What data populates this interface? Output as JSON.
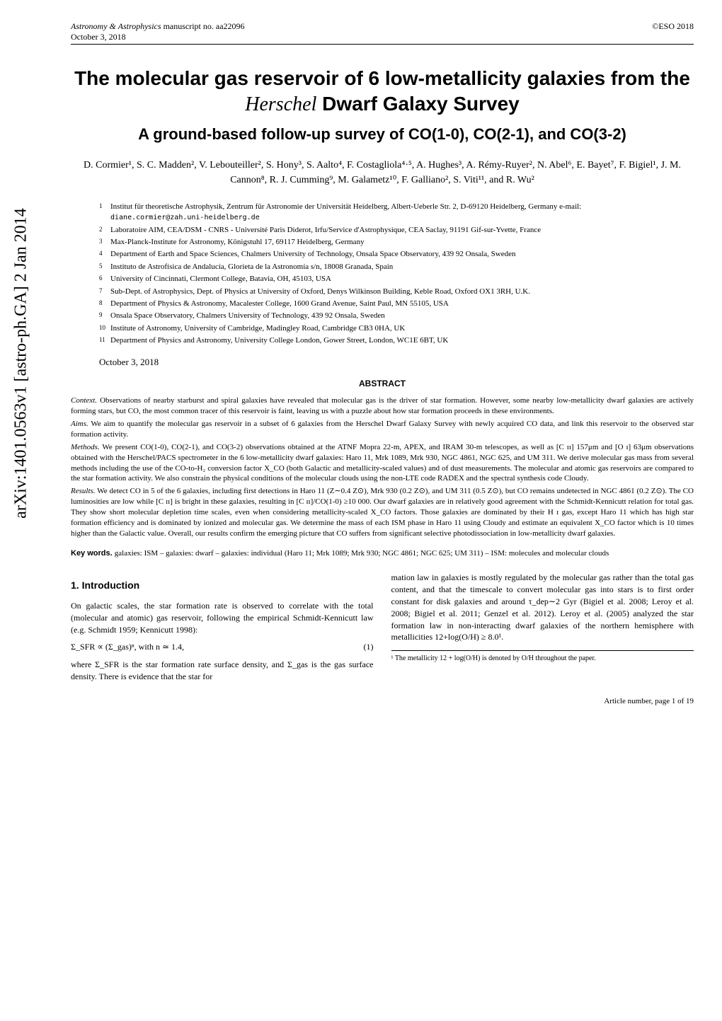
{
  "arxiv_id": "arXiv:1401.0563v1  [astro-ph.GA]  2 Jan 2014",
  "header": {
    "journal": "Astronomy & Astrophysics",
    "manuscript": " manuscript no. aa22096",
    "date": "October 3, 2018",
    "copyright": "©ESO 2018"
  },
  "title_line1": "The molecular gas reservoir of 6 low-metallicity galaxies from the",
  "title_herschel": "Herschel",
  "title_line2_rest": " Dwarf Galaxy Survey",
  "subtitle": "A ground-based follow-up survey of CO(1-0), CO(2-1), and CO(3-2)",
  "authors": "D. Cormier¹, S. C. Madden², V. Lebouteiller², S. Hony³, S. Aalto⁴, F. Costagliola⁴·⁵, A. Hughes³, A. Rémy-Ruyer², N. Abel⁶, E. Bayet⁷, F. Bigiel¹, J. M. Cannon⁸, R. J. Cumming⁹, M. Galametz¹⁰, F. Galliano², S. Viti¹¹, and R. Wu²",
  "affiliations": [
    "Institut für theoretische Astrophysik, Zentrum für Astronomie der Universität Heidelberg, Albert-Ueberle Str. 2, D-69120 Heidelberg, Germany e-mail: ",
    "Laboratoire AIM, CEA/DSM - CNRS - Université Paris Diderot, Irfu/Service d'Astrophysique, CEA Saclay, 91191 Gif-sur-Yvette, France",
    "Max-Planck-Institute for Astronomy, Königstuhl 17, 69117 Heidelberg, Germany",
    "Department of Earth and Space Sciences, Chalmers University of Technology, Onsala Space Observatory, 439 92 Onsala, Sweden",
    "Instituto de Astrofísica de Andalucía, Glorieta de la Astronomía s/n, 18008 Granada, Spain",
    "University of Cincinnati, Clermont College, Batavia, OH, 45103, USA",
    "Sub-Dept. of Astrophysics, Dept. of Physics at University of Oxford, Denys Wilkinson Building, Keble Road, Oxford OX1 3RH, U.K.",
    "Department of Physics & Astronomy, Macalester College, 1600 Grand Avenue, Saint Paul, MN 55105, USA",
    "Onsala Space Observatory, Chalmers University of Technology, 439 92 Onsala, Sweden",
    "Institute of Astronomy, University of Cambridge, Madingley Road, Cambridge CB3 0HA, UK",
    "Department of Physics and Astronomy, University College London, Gower Street, London, WC1E 6BT, UK"
  ],
  "email": "diane.cormier@zah.uni-heidelberg.de",
  "date_line": "October 3, 2018",
  "abstract_heading": "ABSTRACT",
  "abstract": {
    "context_label": "Context.",
    "context": " Observations of nearby starburst and spiral galaxies have revealed that molecular gas is the driver of star formation. However, some nearby low-metallicity dwarf galaxies are actively forming stars, but CO, the most common tracer of this reservoir is faint, leaving us with a puzzle about how star formation proceeds in these environments.",
    "aims_label": "Aims.",
    "aims": " We aim to quantify the molecular gas reservoir in a subset of 6 galaxies from the Herschel Dwarf Galaxy Survey with newly acquired CO data, and link this reservoir to the observed star formation activity.",
    "methods_label": "Methods.",
    "methods": " We present CO(1-0), CO(2-1), and CO(3-2) observations obtained at the ATNF Mopra 22-m, APEX, and IRAM 30-m telescopes, as well as [C ɪɪ] 157μm and [O ɪ] 63μm observations obtained with the Herschel/PACS spectrometer in the 6 low-metallicity dwarf galaxies: Haro 11, Mrk 1089, Mrk 930, NGC 4861, NGC 625, and UM 311. We derive molecular gas mass from several methods including the use of the CO-to-H₂ conversion factor X_CO (both Galactic and metallicity-scaled values) and of dust measurements. The molecular and atomic gas reservoirs are compared to the star formation activity. We also constrain the physical conditions of the molecular clouds using the non-LTE code RADEX and the spectral synthesis code Cloudy.",
    "results_label": "Results.",
    "results": " We detect CO in 5 of the 6 galaxies, including first detections in Haro 11 (Z∼0.4 Z⊙), Mrk 930 (0.2 Z⊙), and UM 311 (0.5 Z⊙), but CO remains undetected in NGC 4861 (0.2 Z⊙). The CO luminosities are low while [C ɪɪ] is bright in these galaxies, resulting in [C ɪɪ]/CO(1-0) ≥10 000. Our dwarf galaxies are in relatively good agreement with the Schmidt-Kennicutt relation for total gas. They show short molecular depletion time scales, even when considering metallicity-scaled X_CO factors. Those galaxies are dominated by their H ɪ gas, except Haro 11 which has high star formation efficiency and is dominated by ionized and molecular gas. We determine the mass of each ISM phase in Haro 11 using Cloudy and estimate an equivalent X_CO factor which is 10 times higher than the Galactic value. Overall, our results confirm the emerging picture that CO suffers from significant selective photodissociation in low-metallicity dwarf galaxies."
  },
  "keywords_label": "Key words. ",
  "keywords": "galaxies: ISM – galaxies: dwarf – galaxies: individual (Haro 11; Mrk 1089; Mrk 930; NGC 4861; NGC 625; UM 311) – ISM: molecules and molecular clouds",
  "intro": {
    "heading": "1. Introduction",
    "para1": "On galactic scales, the star formation rate is observed to correlate with the total (molecular and atomic) gas reservoir, following the empirical Schmidt-Kennicutt law (e.g. Schmidt 1959; Kennicutt 1998):",
    "equation": "Σ_SFR ∝ (Σ_gas)ⁿ, with n ≃ 1.4,",
    "eq_num": "(1)",
    "para2": "where Σ_SFR is the star formation rate surface density, and Σ_gas is the gas surface density. There is evidence that the star for",
    "para3": "mation law in galaxies is mostly regulated by the molecular gas rather than the total gas content, and that the timescale to convert molecular gas into stars is to first order constant for disk galaxies and around τ_dep∼2 Gyr (Bigiel et al. 2008; Leroy et al. 2008; Bigiel et al. 2011; Genzel et al. 2012). Leroy et al. (2005) analyzed the star formation law in non-interacting dwarf galaxies of the northern hemisphere with metallicities 12+log(O/H) ≥ 8.0¹."
  },
  "footnote_text": "¹ The metallicity 12 + log(O/H) is denoted by O/H throughout the paper.",
  "page_footer": "Article number, page 1 of 19"
}
